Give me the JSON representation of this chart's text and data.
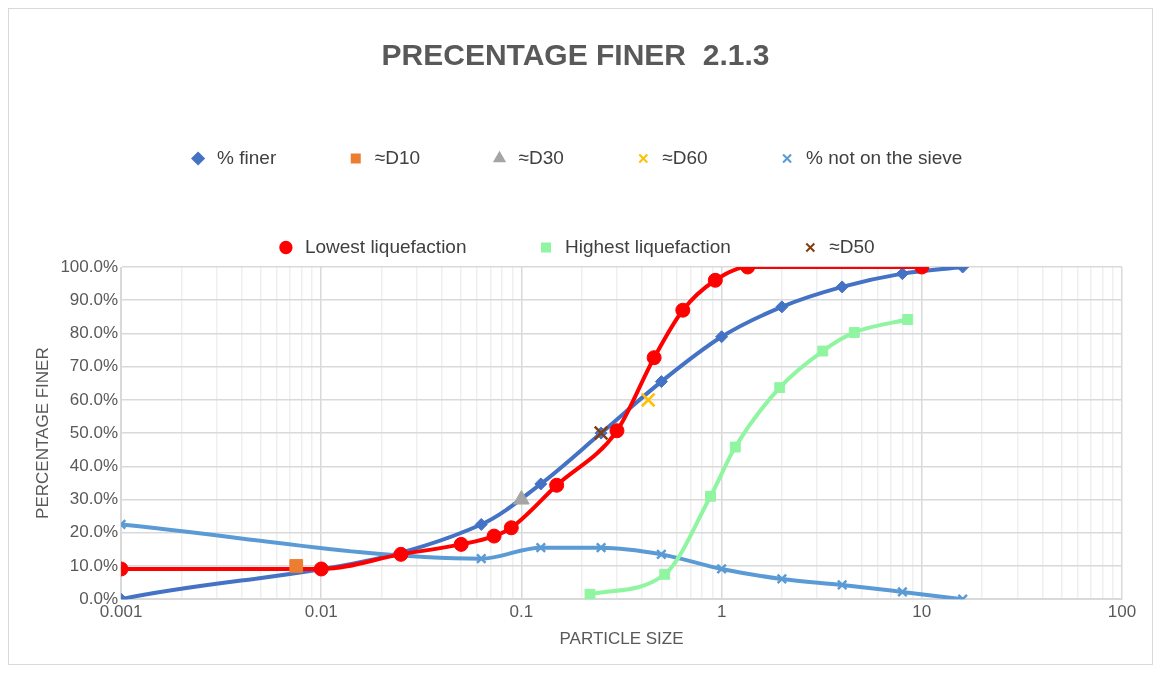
{
  "chart_data": {
    "type": "line",
    "title": "PRECENTAGE FINER  2.1.3",
    "xlabel": "PARTICLE SIZE",
    "ylabel": "PERCENTAGE FINER",
    "log": "x",
    "grid": true,
    "legend": "top",
    "line_style": "solid",
    "xlim": [
      0.001,
      100
    ],
    "ylim": [
      0,
      100
    ],
    "xticks": [
      0.001,
      {
        "value": 0.002,
        "label": null
      },
      {
        "value": 0.003,
        "label": null
      },
      {
        "value": 0.004,
        "label": null
      },
      {
        "value": 0.005,
        "label": null
      },
      {
        "value": 0.006,
        "label": null
      },
      {
        "value": 0.007,
        "label": null
      },
      {
        "value": 0.008,
        "label": null
      },
      {
        "value": 0.009,
        "label": null
      },
      0.01,
      {
        "value": 0.02,
        "label": null
      },
      {
        "value": 0.03,
        "label": null
      },
      {
        "value": 0.04,
        "label": null
      },
      {
        "value": 0.05,
        "label": null
      },
      {
        "value": 0.06,
        "label": null
      },
      {
        "value": 0.07,
        "label": null
      },
      {
        "value": 0.08,
        "label": null
      },
      {
        "value": 0.09,
        "label": null
      },
      0.1,
      {
        "value": 0.2,
        "label": null
      },
      {
        "value": 0.3,
        "label": null
      },
      {
        "value": 0.4,
        "label": null
      },
      {
        "value": 0.5,
        "label": null
      },
      {
        "value": 0.6,
        "label": null
      },
      {
        "value": 0.7,
        "label": null
      },
      {
        "value": 0.8,
        "label": null
      },
      {
        "value": 0.9,
        "label": null
      },
      1,
      {
        "value": 2,
        "label": null
      },
      {
        "value": 3,
        "label": null
      },
      {
        "value": 4,
        "label": null
      },
      {
        "value": 5,
        "label": null
      },
      {
        "value": 6,
        "label": null
      },
      {
        "value": 7,
        "label": null
      },
      {
        "value": 8,
        "label": null
      },
      {
        "value": 9,
        "label": null
      },
      10,
      {
        "value": 20,
        "label": null
      },
      {
        "value": 30,
        "label": null
      },
      {
        "value": 40,
        "label": null
      },
      {
        "value": 50,
        "label": null
      },
      {
        "value": 60,
        "label": null
      },
      {
        "value": 70,
        "label": null
      },
      {
        "value": 80,
        "label": null
      },
      {
        "value": 90,
        "label": null
      },
      100
    ],
    "yticks": [
      {
        "value": 0,
        "label": "0.0%"
      },
      {
        "value": 10,
        "label": "10.0%"
      },
      {
        "value": 20,
        "label": "20.0%"
      },
      {
        "value": 30,
        "label": "30.0%"
      },
      {
        "value": 40,
        "label": "40.0%"
      },
      {
        "value": 50,
        "label": "50.0%"
      },
      {
        "value": 60,
        "label": "60.0%"
      },
      {
        "value": 70,
        "label": "70.0%"
      },
      {
        "value": 80,
        "label": "80.0%"
      },
      {
        "value": 90,
        "label": "90.0%"
      },
      {
        "value": 100,
        "label": "100.0%"
      }
    ],
    "series": [
      {
        "name": "% finer",
        "color": "#4472c4",
        "marker": "diamond",
        "x": [
          0.001,
          0.063,
          0.125,
          0.25,
          0.5,
          1,
          2,
          4,
          8,
          16
        ],
        "values": [
          0,
          22.5,
          34.7,
          50,
          65.5,
          79,
          88,
          94,
          98,
          100
        ]
      },
      {
        "name": "≈D10",
        "color": "#ed7d31",
        "marker": "square",
        "x": [
          0.0075
        ],
        "values": [
          10
        ]
      },
      {
        "name": "≈D30",
        "color": "#a5a5a5",
        "marker": "triangle",
        "x": [
          0.1
        ],
        "values": [
          30
        ]
      },
      {
        "name": "≈D60",
        "color": "#ffc000",
        "marker": "cross",
        "x": [
          0.43
        ],
        "values": [
          60
        ]
      },
      {
        "name": "% not on the sieve",
        "color": "#5b9bd5",
        "marker": "cross",
        "x": [
          0.001,
          0.063,
          0.125,
          0.25,
          0.5,
          1,
          2,
          4,
          8,
          16
        ],
        "values": [
          22.5,
          12.2,
          15.5,
          15.5,
          13.5,
          9.1,
          6.1,
          4.3,
          2.2,
          0
        ]
      },
      {
        "name": "Lowest liquefaction",
        "color": "#ff0000",
        "marker": "circle",
        "x": [
          0.001,
          0.01,
          0.025,
          0.05,
          0.073,
          0.089,
          0.15,
          0.3,
          0.46,
          0.64,
          0.93,
          1.35,
          10
        ],
        "values": [
          9.1,
          9.1,
          13.5,
          16.5,
          19,
          21.5,
          34.3,
          50.7,
          72.7,
          87,
          96,
          100,
          100
        ]
      },
      {
        "name": "Highest liquefaction",
        "color": "#90f5a0",
        "marker": "square",
        "x": [
          0.22,
          0.52,
          0.88,
          1.17,
          1.95,
          3.2,
          4.6,
          8.5
        ],
        "values": [
          1.5,
          7.5,
          31,
          45.8,
          63.7,
          74.7,
          80.3,
          84.2
        ]
      },
      {
        "name": "≈D50",
        "color": "#843c0c",
        "marker": "cross",
        "x": [
          0.25
        ],
        "values": [
          50
        ]
      }
    ]
  }
}
